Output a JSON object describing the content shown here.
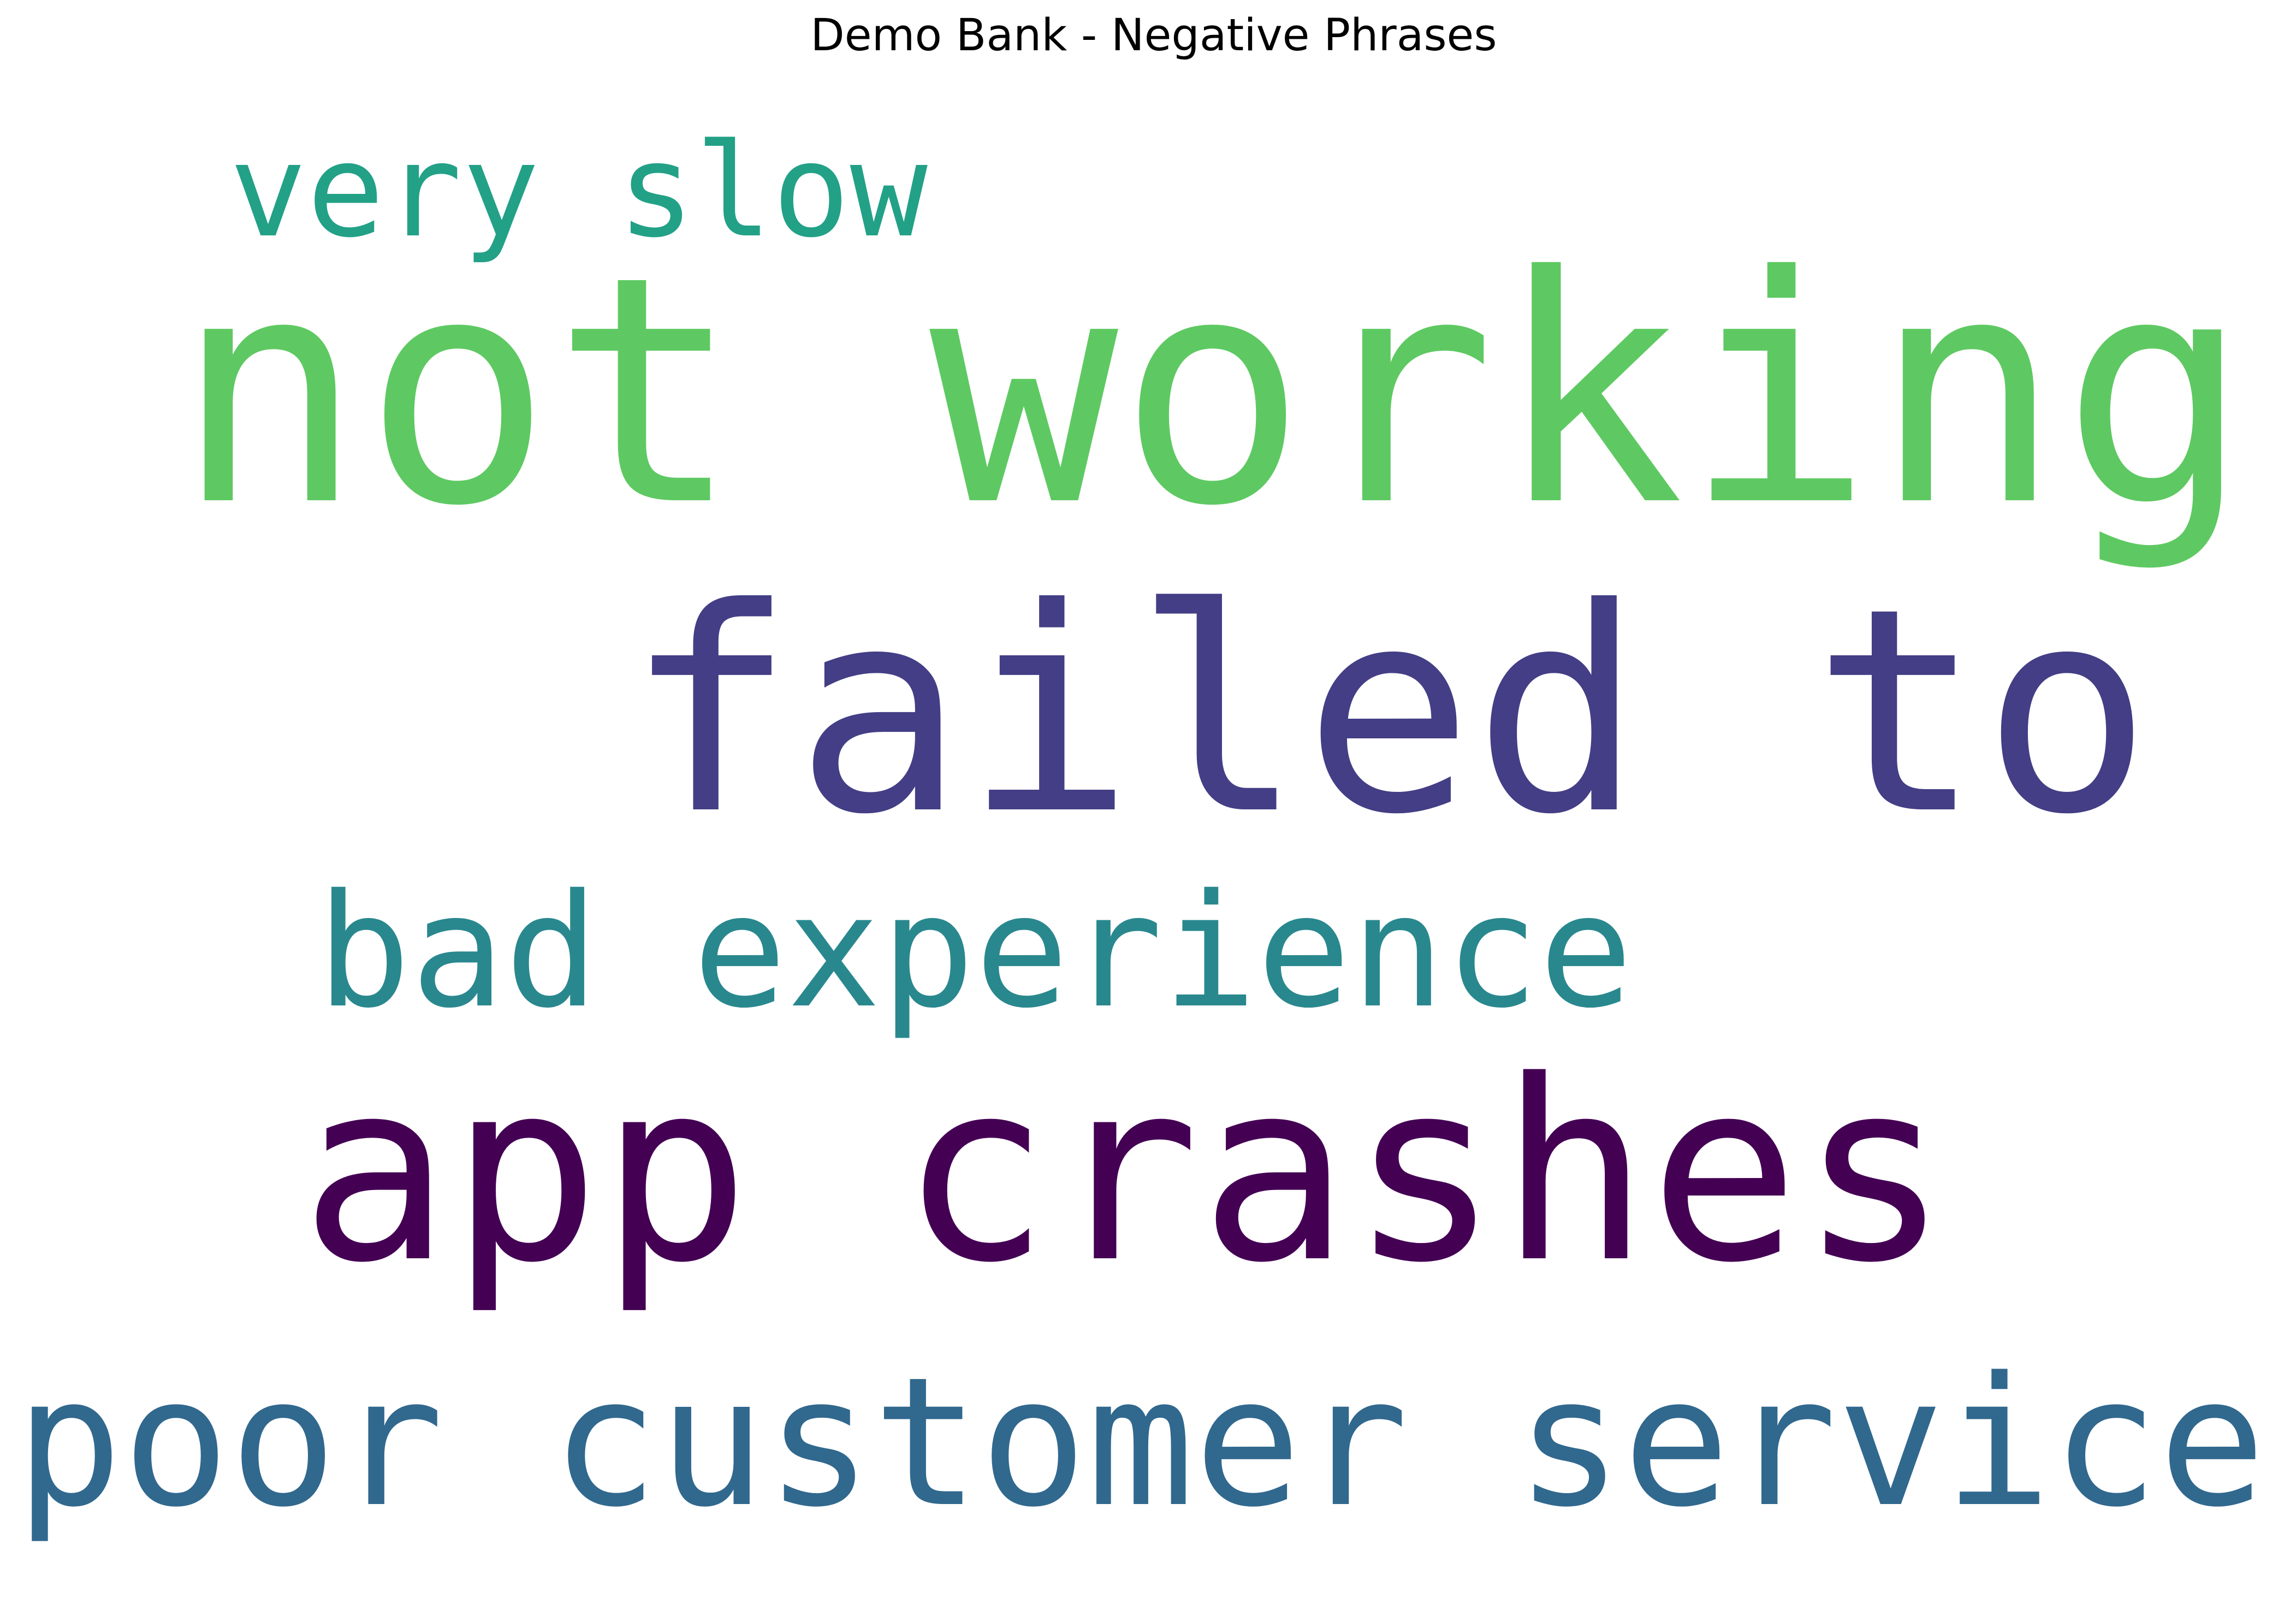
{
  "title": "Demo Bank - Negative Phrases",
  "words": [
    {
      "text": "very slow",
      "color": "#22a187"
    },
    {
      "text": "not working",
      "color": "#5ec962"
    },
    {
      "text": "failed to",
      "color": "#433e85"
    },
    {
      "text": "bad experience",
      "color": "#29888e"
    },
    {
      "text": "app crashes",
      "color": "#440154"
    },
    {
      "text": "poor customer service",
      "color": "#31688e"
    }
  ]
}
